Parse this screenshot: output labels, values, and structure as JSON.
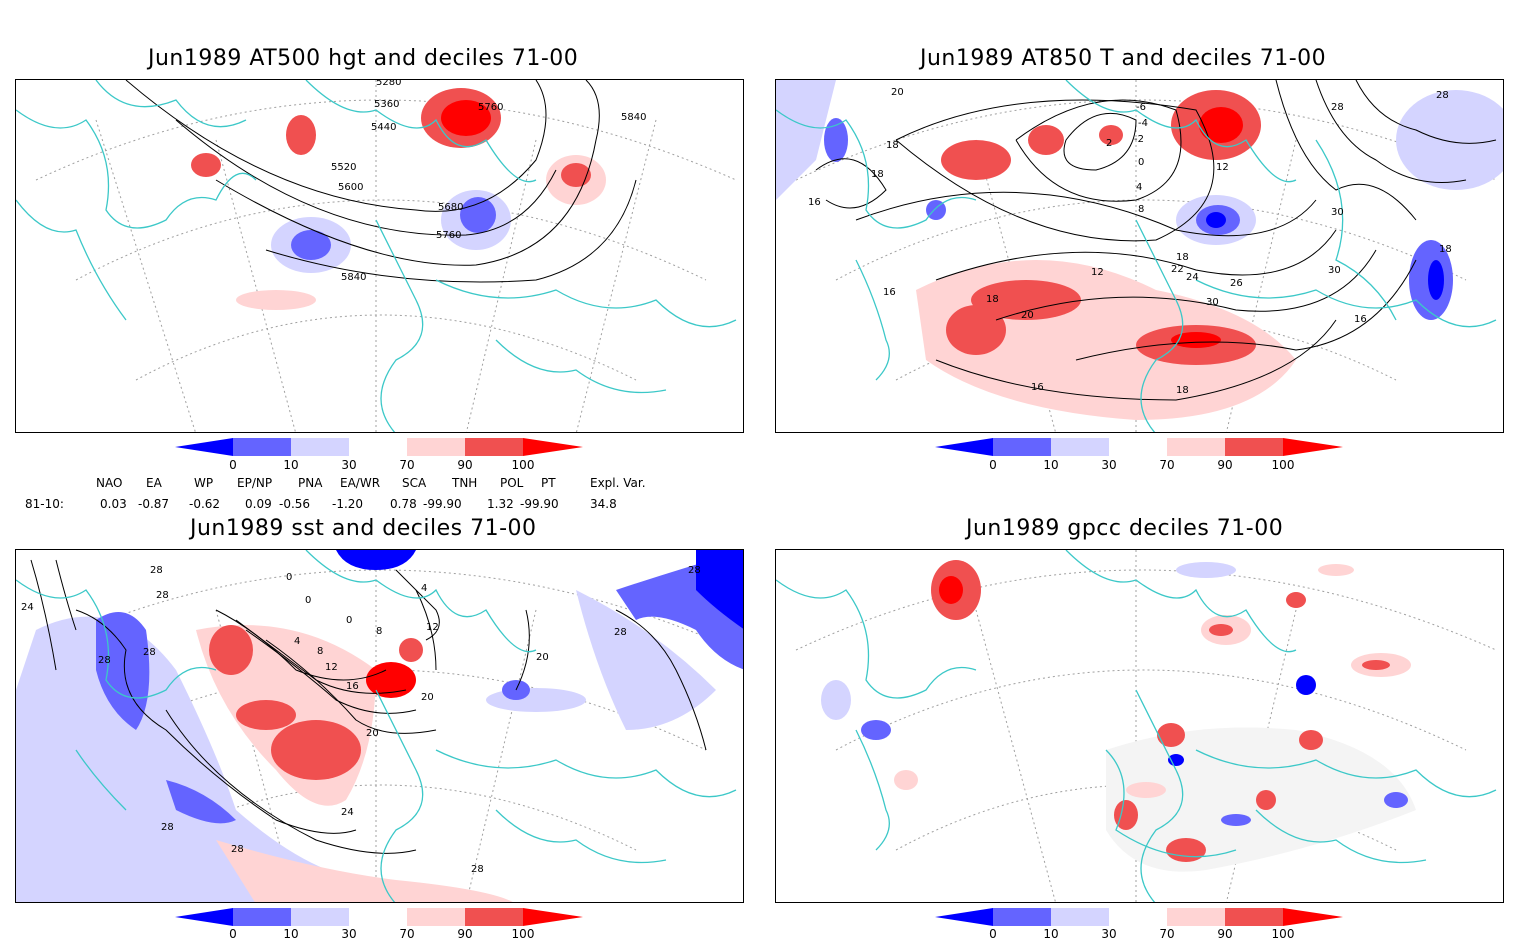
{
  "panels": [
    {
      "title": "Jun1989 AT500 hgt and deciles 71-00",
      "contour_labels": [
        "5280",
        "5360",
        "5440",
        "5520",
        "5600",
        "5680",
        "5760",
        "5840",
        "5840",
        "5760",
        "5680"
      ]
    },
    {
      "title": "Jun1989 AT850 T and deciles 71-00",
      "contour_labels": [
        "20",
        "18",
        "16",
        "18",
        "16",
        "-8",
        "-6",
        "-4",
        "-2",
        "2",
        "0",
        "2",
        "4",
        "6",
        "8",
        "10",
        "12",
        "12",
        "14",
        "18",
        "22",
        "24",
        "26",
        "28",
        "30",
        "18",
        "20",
        "18",
        "16",
        "16",
        "18",
        "20",
        "22",
        "24",
        "26",
        "28",
        "30",
        "30",
        "28",
        "18",
        "16",
        "20"
      ]
    },
    {
      "title": "Jun1989 sst and deciles 71-00",
      "contour_labels": [
        "28",
        "24",
        "28",
        "28",
        "28",
        "0",
        "0",
        "4",
        "0",
        "4",
        "8",
        "8",
        "12",
        "12",
        "16",
        "20",
        "20",
        "20",
        "24",
        "28",
        "28",
        "28",
        "28"
      ]
    },
    {
      "title": "Jun1989 gpcc deciles 71-00",
      "contour_labels": []
    }
  ],
  "colorbar": {
    "ticks": [
      "0",
      "10",
      "30",
      "70",
      "90",
      "100"
    ],
    "colors": [
      "#0000ff",
      "#6464ff",
      "#d4d4ff",
      "#ffffff",
      "#ffd4d4",
      "#f05050",
      "#ff0000"
    ]
  },
  "indices": {
    "headers": [
      "NAO",
      "EA",
      "WP",
      "EP/NP",
      "PNA",
      "EA/WR",
      "SCA",
      "TNH",
      "POL",
      "PT",
      "Expl. Var."
    ],
    "row_label": "81-10:",
    "values": [
      "0.03",
      "-0.87",
      "-0.62",
      "0.09",
      "-0.56",
      "-1.20",
      "0.78",
      "-99.90",
      "1.32",
      "-99.90",
      "34.8"
    ]
  },
  "colors": {
    "coast": "#3cc8c8",
    "contour": "#000000",
    "grid": "#a0a0a0"
  }
}
